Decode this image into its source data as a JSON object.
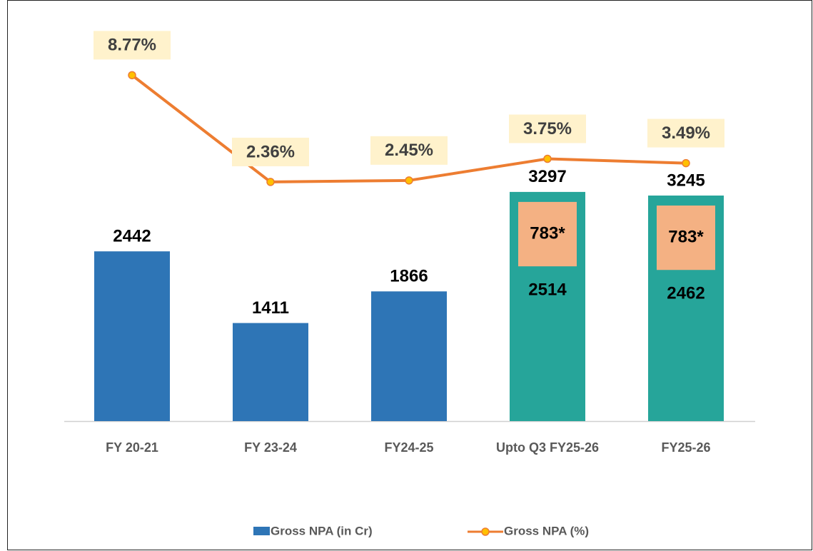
{
  "chart_data": {
    "type": "combo",
    "categories": [
      "FY 20-21",
      "FY 23-24",
      "FY24-25",
      "Upto Q3 FY25-26",
      "FY25-26"
    ],
    "series": [
      {
        "name": "Gross NPA (in Cr)",
        "type": "bar",
        "color": "#2e75b6",
        "colors": [
          "#2e75b6",
          "#2e75b6",
          "#2e75b6",
          "#26a59a",
          "#26a59a"
        ],
        "values": [
          2442,
          1411,
          1866,
          3297,
          3245
        ]
      },
      {
        "name": "Gross NPA (%)",
        "type": "line",
        "axis": "y2",
        "color": "#ed7d31",
        "marker_color": "#ffc000",
        "values": [
          8.77,
          2.36,
          2.45,
          3.75,
          3.49
        ],
        "value_labels": [
          "8.77%",
          "2.36%",
          "2.45%",
          "3.75%",
          "3.49%"
        ]
      }
    ],
    "breakdown": {
      "base": [
        null,
        null,
        null,
        2514,
        2462
      ],
      "other": [
        null,
        null,
        null,
        783,
        783
      ],
      "other_labels": [
        null,
        null,
        null,
        "783*",
        "783*"
      ],
      "other_color": "#f4b183"
    },
    "ylim": [
      0,
      5750
    ],
    "y2lim": [
      -12,
      12
    ]
  }
}
